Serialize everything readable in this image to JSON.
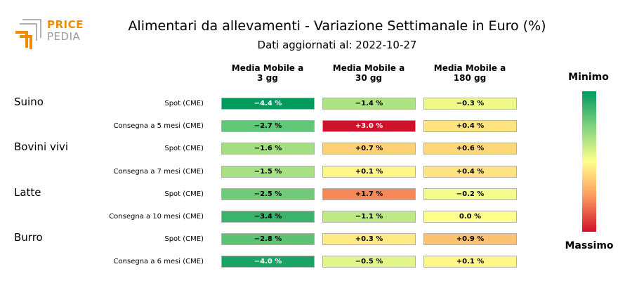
{
  "header": {
    "logo_line1": "PRICE",
    "logo_line2": "PEDIA",
    "title": "Alimentari da allevamenti - Variazione Settimanale in Euro (%)",
    "subtitle": "Dati aggiornati al: 2022-10-27"
  },
  "legend": {
    "min_label": "Minimo",
    "max_label": "Massimo"
  },
  "colors": {
    "low": "#009a5e",
    "mid": "#ffff8c",
    "high": "#d0112b",
    "logo_orange": "#f08c00",
    "logo_gray": "#9a9a9a"
  },
  "chart_data": {
    "type": "heatmap",
    "columns": [
      "Media Mobile a\n3 gg",
      "Media Mobile a\n30 gg",
      "Media Mobile a\n180 gg"
    ],
    "groups": [
      {
        "name": "Suino",
        "rows": [
          {
            "label": "Spot (CME)",
            "values": [
              -4.4,
              -1.4,
              -0.3
            ],
            "texts": [
              "−4.4 %",
              "−1.4 %",
              "−0.3 %"
            ]
          },
          {
            "label": "Consegna a 5 mesi (CME)",
            "values": [
              -2.7,
              3.0,
              0.4
            ],
            "texts": [
              "−2.7 %",
              "+3.0 %",
              "+0.4 %"
            ]
          }
        ]
      },
      {
        "name": "Bovini vivi",
        "rows": [
          {
            "label": "Spot (CME)",
            "values": [
              -1.6,
              0.7,
              0.6
            ],
            "texts": [
              "−1.6 %",
              "+0.7 %",
              "+0.6 %"
            ]
          },
          {
            "label": "Consegna a 7 mesi (CME)",
            "values": [
              -1.5,
              0.1,
              0.4
            ],
            "texts": [
              "−1.5 %",
              "+0.1 %",
              "+0.4 %"
            ]
          }
        ]
      },
      {
        "name": "Latte",
        "rows": [
          {
            "label": "Spot (CME)",
            "values": [
              -2.5,
              1.7,
              -0.2
            ],
            "texts": [
              "−2.5 %",
              "+1.7 %",
              "−0.2 %"
            ]
          },
          {
            "label": "Consegna a 10 mesi (CME)",
            "values": [
              -3.4,
              -1.1,
              0.0
            ],
            "texts": [
              "−3.4 %",
              "−1.1 %",
              "0.0 %"
            ]
          }
        ]
      },
      {
        "name": "Burro",
        "rows": [
          {
            "label": "Spot (CME)",
            "values": [
              -2.8,
              0.3,
              0.9
            ],
            "texts": [
              "−2.8 %",
              "+0.3 %",
              "+0.9 %"
            ]
          },
          {
            "label": "Consegna a 6 mesi (CME)",
            "values": [
              -4.0,
              -0.5,
              0.1
            ],
            "texts": [
              "−4.0 %",
              "−0.5 %",
              "+0.1 %"
            ]
          }
        ]
      }
    ],
    "color_range": [
      -4.4,
      3.0
    ]
  }
}
